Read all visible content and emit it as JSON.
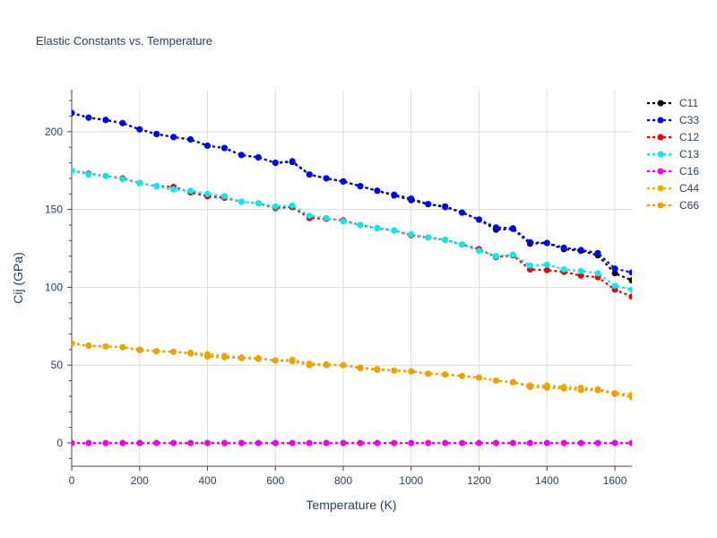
{
  "chart_data": {
    "type": "line",
    "title": "Elastic Constants vs. Temperature",
    "xlabel": "Temperature (K)",
    "ylabel": "Cij (GPa)",
    "xlim": [
      0,
      1650
    ],
    "ylim": [
      -15,
      227
    ],
    "xticks": [
      0,
      200,
      400,
      600,
      800,
      1000,
      1200,
      1400,
      1600
    ],
    "yticks": [
      0,
      50,
      100,
      150,
      200
    ],
    "grid": true,
    "legend_position": "right",
    "series": [
      {
        "name": "C11",
        "color": "#000000",
        "x": [
          0,
          50,
          100,
          150,
          200,
          250,
          300,
          350,
          400,
          450,
          500,
          550,
          600,
          650,
          700,
          750,
          800,
          850,
          900,
          950,
          1000,
          1050,
          1100,
          1150,
          1200,
          1250,
          1300,
          1350,
          1400,
          1450,
          1500,
          1550,
          1600,
          1650
        ],
        "values": [
          212,
          209,
          207.5,
          205.5,
          201.5,
          198.5,
          196.5,
          195,
          191,
          189.5,
          185,
          183.5,
          180,
          180.5,
          172.5,
          170,
          168,
          165,
          162,
          159,
          156,
          153.5,
          152,
          148,
          143.5,
          137,
          137.5,
          128,
          128.5,
          124.5,
          123.5,
          120.5,
          109,
          104.5
        ]
      },
      {
        "name": "C33",
        "color": "#0000ee",
        "x": [
          0,
          50,
          100,
          150,
          200,
          250,
          300,
          350,
          400,
          450,
          500,
          550,
          600,
          650,
          700,
          750,
          800,
          850,
          900,
          950,
          1000,
          1050,
          1100,
          1150,
          1200,
          1250,
          1300,
          1350,
          1400,
          1450,
          1500,
          1550,
          1600,
          1650
        ],
        "values": [
          212,
          209,
          207.5,
          205.5,
          201.5,
          198.5,
          196.5,
          195,
          191,
          189.5,
          185,
          183.5,
          180,
          181,
          172.5,
          170,
          168,
          165,
          162,
          159.5,
          157,
          153.5,
          151.5,
          148,
          143.5,
          138.5,
          138,
          129,
          128.5,
          125.5,
          124,
          122,
          112,
          109.5
        ]
      },
      {
        "name": "C12",
        "color": "#ee0000",
        "x": [
          0,
          50,
          100,
          150,
          200,
          250,
          300,
          350,
          400,
          450,
          500,
          550,
          600,
          650,
          700,
          750,
          800,
          850,
          900,
          950,
          1000,
          1050,
          1100,
          1150,
          1200,
          1250,
          1300,
          1350,
          1400,
          1450,
          1500,
          1550,
          1600,
          1650
        ],
        "values": [
          175,
          173,
          171.5,
          170,
          167,
          165,
          164.5,
          161,
          158.5,
          157.5,
          155,
          154,
          151,
          151.5,
          144.5,
          144,
          143,
          140,
          138,
          136.5,
          133.5,
          132,
          130.5,
          127.5,
          124.5,
          119.5,
          120.5,
          111.5,
          111,
          110,
          107.5,
          106.5,
          98.5,
          94
        ]
      },
      {
        "name": "C13",
        "color": "#00eeee",
        "x": [
          0,
          50,
          100,
          150,
          200,
          250,
          300,
          350,
          400,
          450,
          500,
          550,
          600,
          650,
          700,
          750,
          800,
          850,
          900,
          950,
          1000,
          1050,
          1100,
          1150,
          1200,
          1250,
          1300,
          1350,
          1400,
          1450,
          1500,
          1550,
          1600,
          1650
        ],
        "values": [
          175,
          172.5,
          171.5,
          169.5,
          167,
          165,
          163,
          162,
          160,
          158.5,
          155,
          154,
          152,
          152.5,
          146,
          144.5,
          142.5,
          140,
          138,
          136.5,
          134,
          132,
          130.5,
          127.5,
          123.5,
          120,
          121,
          114,
          114.5,
          111.5,
          110.5,
          109,
          101,
          98.5
        ]
      },
      {
        "name": "C16",
        "color": "#ee00ee",
        "x": [
          0,
          50,
          100,
          150,
          200,
          250,
          300,
          350,
          400,
          450,
          500,
          550,
          600,
          650,
          700,
          750,
          800,
          850,
          900,
          950,
          1000,
          1050,
          1100,
          1150,
          1200,
          1250,
          1300,
          1350,
          1400,
          1450,
          1500,
          1550,
          1600,
          1650
        ],
        "values": [
          0,
          0,
          0,
          0,
          0,
          0,
          0,
          0,
          0,
          0,
          0,
          0,
          0,
          0,
          0,
          0,
          0,
          0,
          0,
          0,
          0,
          0,
          0,
          0,
          0,
          0,
          0,
          0,
          0,
          0,
          0,
          0,
          0,
          0
        ]
      },
      {
        "name": "C44",
        "color": "#eeb000",
        "x": [
          0,
          50,
          100,
          150,
          200,
          250,
          300,
          350,
          400,
          450,
          500,
          550,
          600,
          650,
          700,
          750,
          800,
          850,
          900,
          950,
          1000,
          1050,
          1100,
          1150,
          1200,
          1250,
          1300,
          1350,
          1400,
          1450,
          1500,
          1550,
          1600,
          1650
        ],
        "values": [
          64,
          62.5,
          62,
          61.5,
          60,
          59,
          58.5,
          58,
          57,
          56,
          55,
          54.5,
          53,
          53.5,
          51,
          50.5,
          50,
          48.5,
          47.5,
          46.5,
          46,
          44.5,
          44,
          43,
          42,
          40,
          39,
          37,
          37,
          36,
          35.5,
          34.5,
          32,
          31
        ]
      },
      {
        "name": "C66",
        "color": "#f0a000",
        "x": [
          0,
          50,
          100,
          150,
          200,
          250,
          300,
          350,
          400,
          450,
          500,
          550,
          600,
          650,
          700,
          750,
          800,
          850,
          900,
          950,
          1000,
          1050,
          1100,
          1150,
          1200,
          1250,
          1300,
          1350,
          1400,
          1450,
          1500,
          1550,
          1600,
          1650
        ],
        "values": [
          64,
          62.5,
          62,
          61.5,
          59.5,
          59,
          58.5,
          57.5,
          55.5,
          55,
          54.5,
          54,
          53,
          52.5,
          50,
          50,
          50,
          48,
          47,
          46.5,
          46,
          44.5,
          44,
          43,
          42,
          40,
          39,
          36,
          35.5,
          35,
          34,
          34,
          31.5,
          29.5
        ]
      }
    ]
  }
}
